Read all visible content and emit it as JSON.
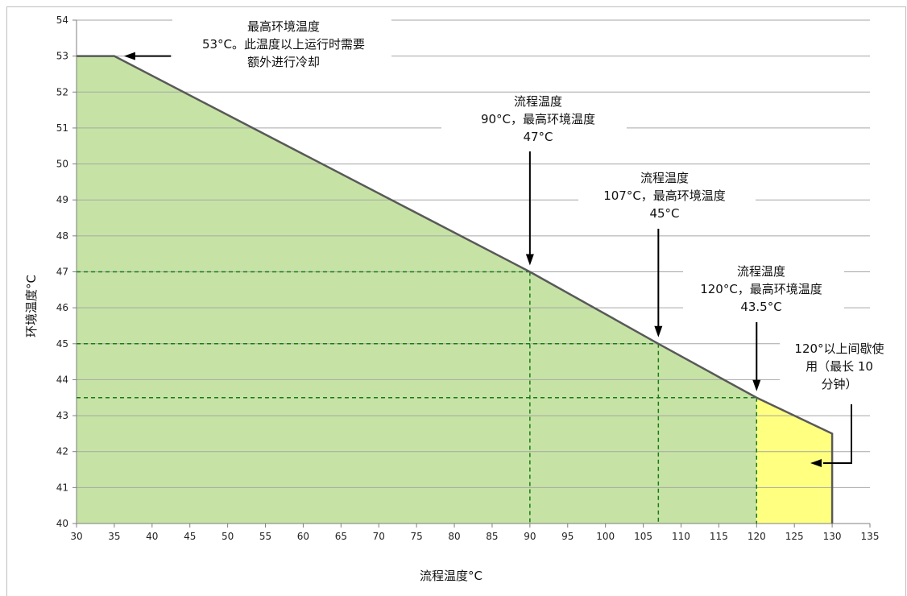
{
  "chart_data": {
    "type": "area",
    "xlabel": "流程温度°C",
    "ylabel": "环境温度°C",
    "xlim": [
      30,
      135
    ],
    "ylim": [
      40,
      54
    ],
    "xticks": [
      "30",
      "35",
      "40",
      "45",
      "50",
      "55",
      "60",
      "65",
      "70",
      "75",
      "80",
      "85",
      "90",
      "95",
      "100",
      "105",
      "110",
      "115",
      "120",
      "125",
      "130",
      "135"
    ],
    "yticks": [
      "40",
      "41",
      "42",
      "43",
      "44",
      "45",
      "46",
      "47",
      "48",
      "49",
      "50",
      "51",
      "52",
      "53",
      "54"
    ],
    "grid": "horizontal",
    "boundary": {
      "x": [
        30,
        35,
        90,
        107,
        120,
        130,
        130
      ],
      "y": [
        53,
        53,
        47,
        45,
        43.5,
        42.5,
        40
      ]
    },
    "regions": [
      {
        "fill": "#c6e3a5",
        "x_range": [
          30,
          120
        ]
      },
      {
        "fill": "#ffff80",
        "x_range": [
          120,
          130
        ]
      }
    ],
    "reference_points": [
      {
        "x": 90,
        "y": 47
      },
      {
        "x": 107,
        "y": 45
      },
      {
        "x": 120,
        "y": 43.5
      }
    ],
    "colors": {
      "line": "#595959",
      "dash": "#1a7a1a",
      "grid": "#a6a6a6",
      "arrow": "#000000"
    },
    "annotations": [
      {
        "lines": [
          "最高环境温度",
          "53°C。此温度以上运行时需要",
          "额外进行冷却"
        ]
      },
      {
        "lines": [
          "流程温度",
          "90°C，最高环境温度",
          "47°C"
        ]
      },
      {
        "lines": [
          "流程温度",
          "107°C，最高环境温度",
          "45°C"
        ]
      },
      {
        "lines": [
          "流程温度",
          "120°C，最高环境温度",
          "43.5°C"
        ]
      },
      {
        "lines": [
          "120°以上间歇使",
          "用（最长  10",
          "分钟）"
        ]
      }
    ]
  }
}
